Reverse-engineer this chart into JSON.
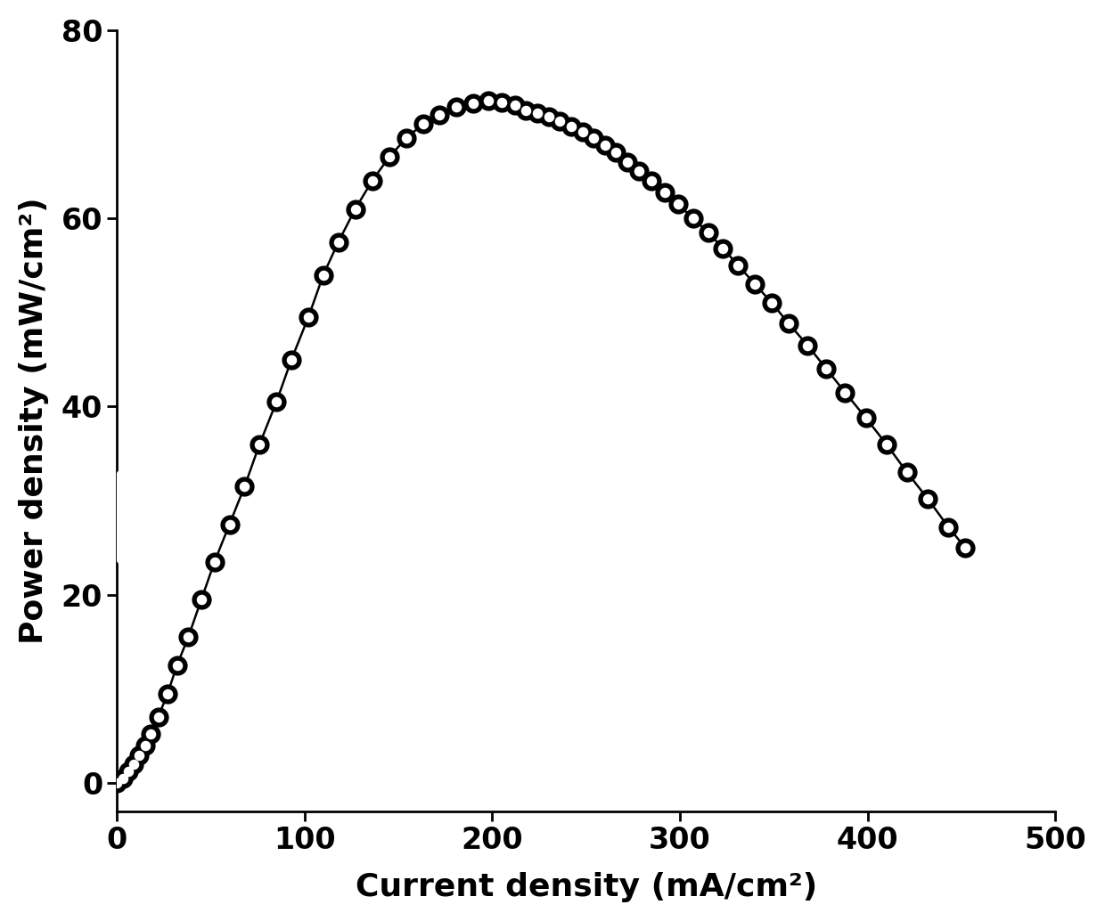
{
  "x": [
    0,
    3,
    6,
    9,
    12,
    15,
    18,
    22,
    27,
    32,
    38,
    45,
    52,
    60,
    68,
    76,
    85,
    93,
    102,
    110,
    118,
    127,
    136,
    145,
    154,
    163,
    172,
    181,
    190,
    198,
    205,
    212,
    218,
    224,
    230,
    236,
    242,
    248,
    254,
    260,
    266,
    272,
    278,
    285,
    292,
    299,
    307,
    315,
    323,
    331,
    340,
    349,
    358,
    368,
    378,
    388,
    399,
    410,
    421,
    432,
    443,
    452
  ],
  "y": [
    0,
    0.5,
    1.2,
    2.0,
    2.9,
    4.0,
    5.2,
    7.0,
    9.5,
    12.5,
    15.5,
    19.5,
    23.5,
    27.5,
    31.5,
    36.0,
    40.5,
    45.0,
    49.5,
    54.0,
    57.5,
    61.0,
    64.0,
    66.5,
    68.5,
    70.0,
    71.0,
    71.8,
    72.2,
    72.5,
    72.3,
    72.0,
    71.5,
    71.2,
    70.8,
    70.3,
    69.8,
    69.2,
    68.5,
    67.8,
    67.0,
    66.0,
    65.0,
    64.0,
    62.8,
    61.5,
    60.0,
    58.5,
    56.8,
    55.0,
    53.0,
    51.0,
    48.8,
    46.5,
    44.0,
    41.5,
    38.8,
    36.0,
    33.0,
    30.2,
    27.2,
    25.0
  ],
  "xlabel": "Current density (mA/cm²)",
  "ylabel": "Power density (mW/cm²)",
  "xlim": [
    0,
    500
  ],
  "ylim": [
    -3,
    80
  ],
  "xticks": [
    0,
    100,
    200,
    300,
    400,
    500
  ],
  "yticks": [
    0,
    20,
    40,
    60,
    80
  ],
  "marker_size": 16,
  "marker_color": "#000000",
  "line_color": "#000000",
  "line_width": 1.8,
  "background_color": "white",
  "xlabel_fontsize": 26,
  "ylabel_fontsize": 26,
  "tick_fontsize": 24,
  "font_weight": "bold"
}
